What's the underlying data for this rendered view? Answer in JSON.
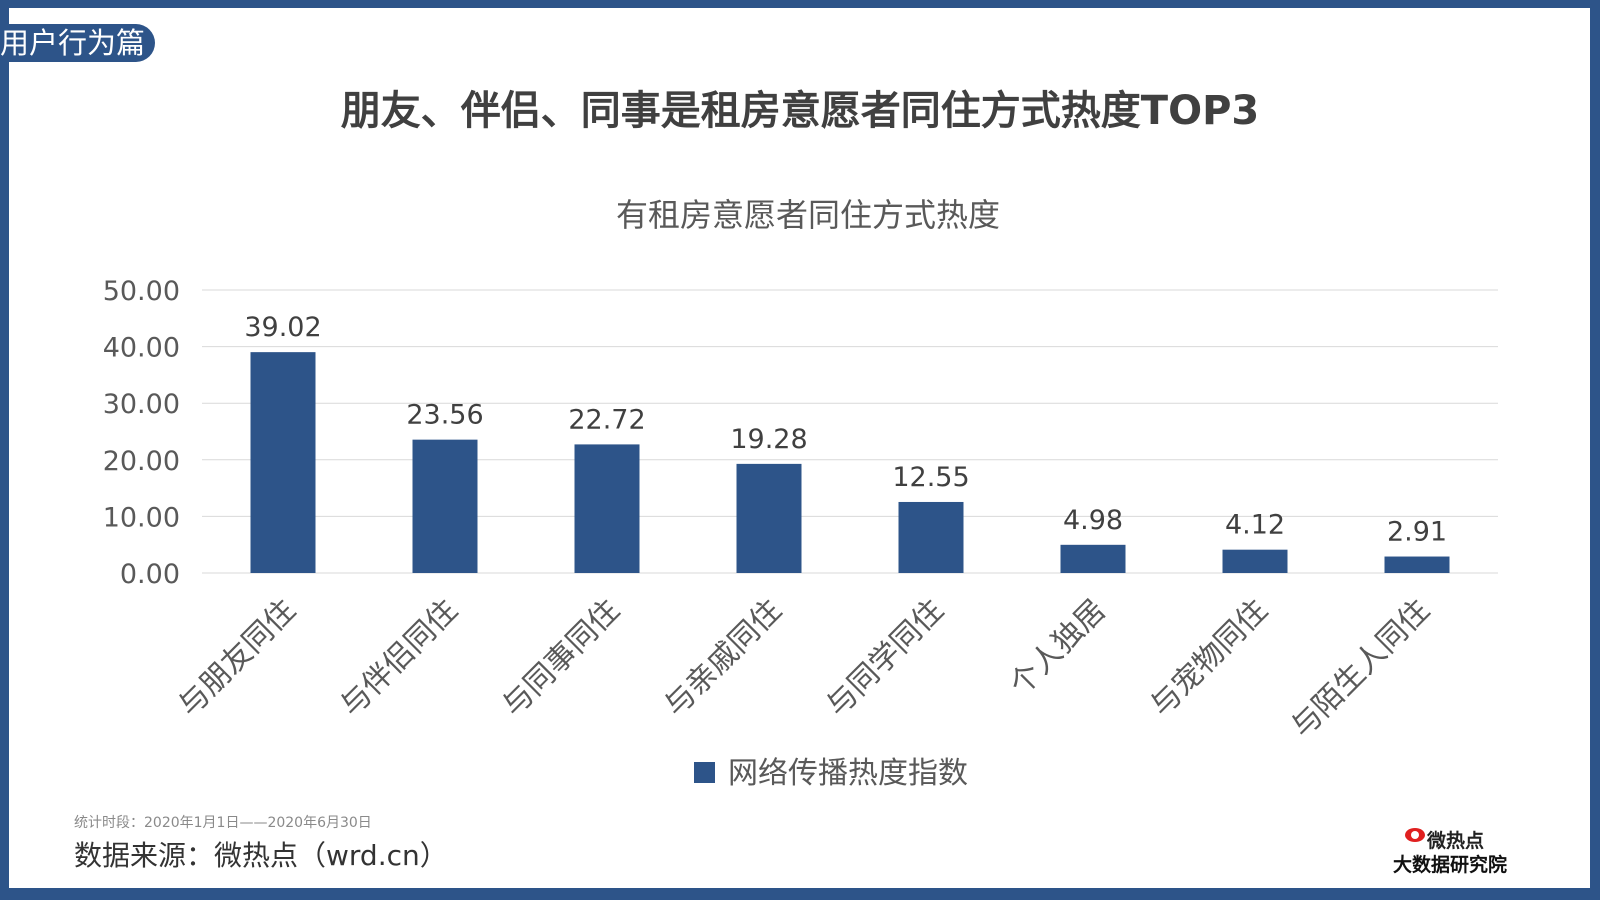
{
  "badge": "用户行为篇",
  "title": "朋友、伴侣、同事是租房意愿者同住方式热度TOP3",
  "chart_data": {
    "type": "bar",
    "title": "有租房意愿者同住方式热度",
    "categories": [
      "与朋友同住",
      "与伴侣同住",
      "与同事同住",
      "与亲戚同住",
      "与同学同住",
      "个人独居",
      "与宠物同住",
      "与陌生人同住"
    ],
    "series": [
      {
        "name": "网络传播热度指数",
        "values": [
          39.02,
          23.56,
          22.72,
          19.28,
          12.55,
          4.98,
          4.12,
          2.91
        ]
      }
    ],
    "ylim": [
      0,
      50
    ],
    "yticks": [
      "0.00",
      "10.00",
      "20.00",
      "30.00",
      "40.00",
      "50.00"
    ],
    "grid": true,
    "legend": "bottom",
    "color": "#2d5489"
  },
  "footer": {
    "period": "统计时段：2020年1月1日——2020年6月30日",
    "source": "数据来源：微热点（wrd.cn）"
  },
  "logo": {
    "line1": "微热点",
    "line2": "大数据研究院"
  }
}
